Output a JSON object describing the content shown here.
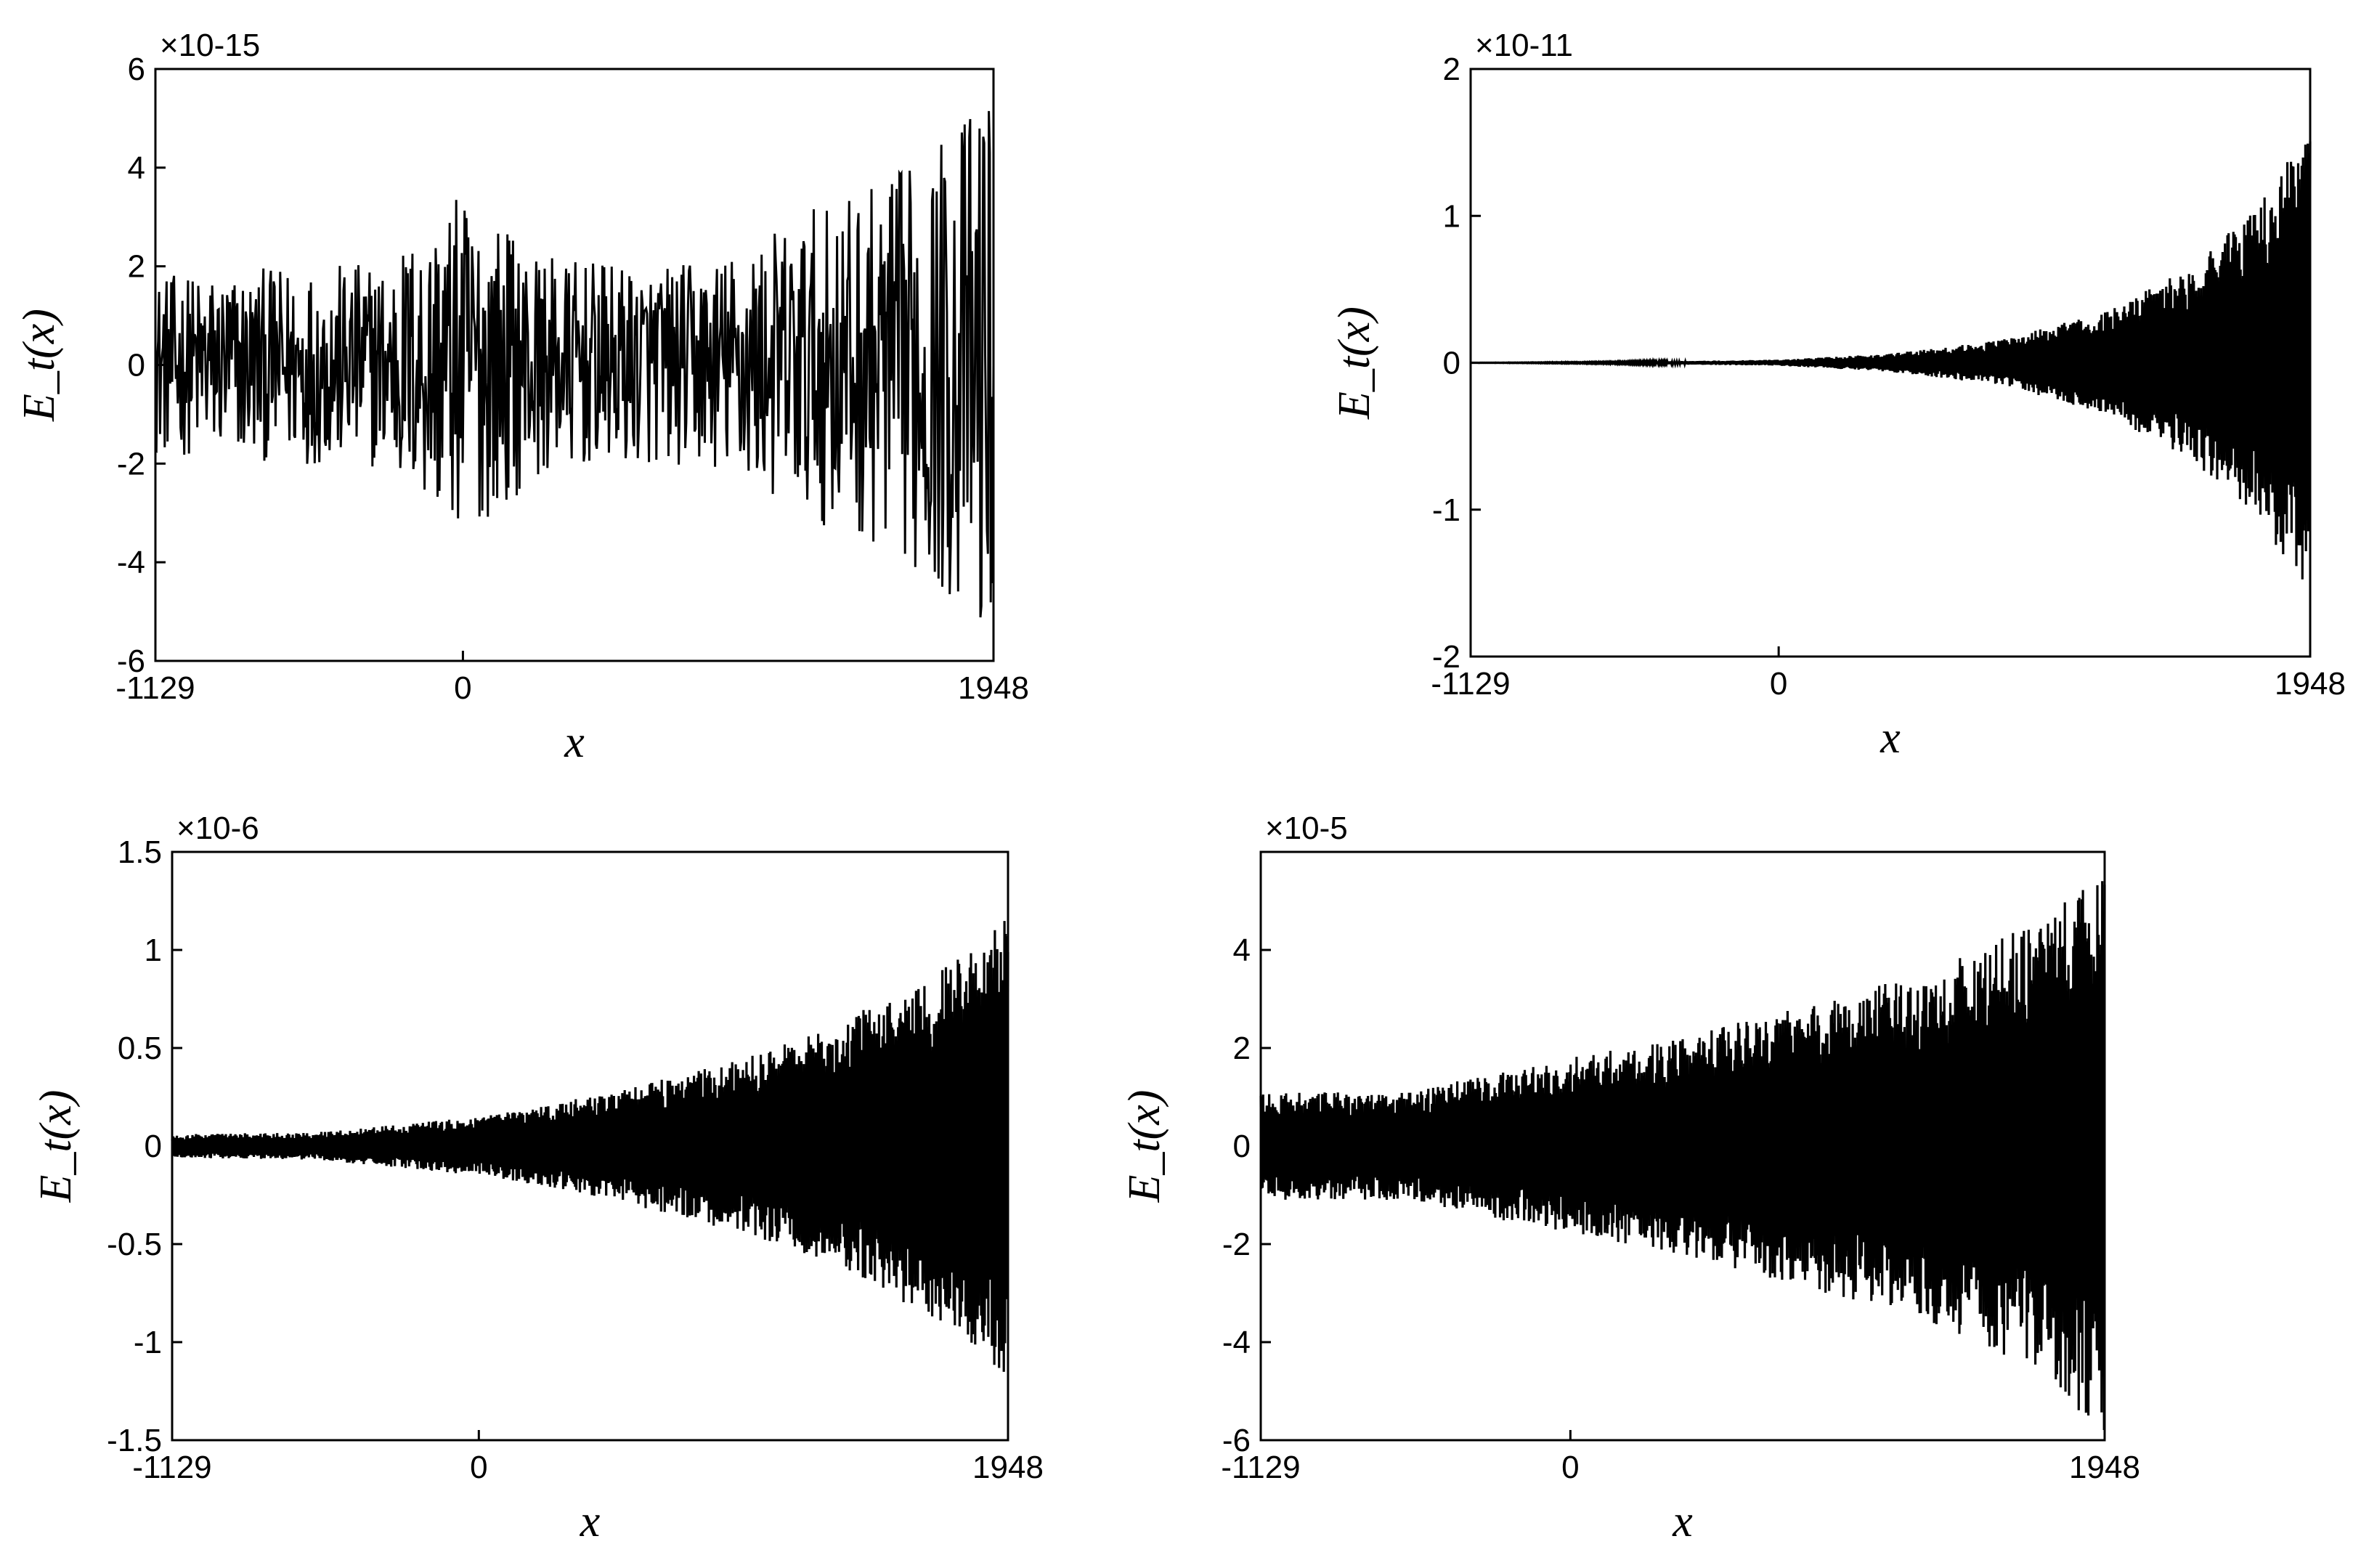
{
  "chart_data": [
    {
      "type": "line",
      "title": "",
      "xlabel": "x",
      "ylabel": "E_t(x)",
      "xlim": [
        -1129,
        1948
      ],
      "ylim": [
        -6,
        6
      ],
      "xticks": [
        -1129,
        0,
        1948
      ],
      "yticks": [
        -6,
        -4,
        -2,
        0,
        2,
        4,
        6
      ],
      "ytick_labels": [
        "-6",
        "-4",
        "-2",
        "0",
        "2",
        "4",
        "6"
      ],
      "y_exponent": "×10-15",
      "series": [
        {
          "x": [
            -1129,
            -900,
            -600,
            -300,
            0,
            300,
            600,
            900,
            1100,
            1300,
            1500,
            1700,
            1850,
            1948
          ],
          "envelope": [
            1.8,
            1.9,
            2.0,
            2.1,
            3.5,
            2.2,
            2.0,
            2.1,
            2.6,
            3.2,
            3.6,
            4.3,
            5.2,
            5.8
          ]
        }
      ]
    },
    {
      "type": "line",
      "title": "",
      "xlabel": "x",
      "ylabel": "E_t(x)",
      "xlim": [
        -1129,
        1948
      ],
      "ylim": [
        -2,
        2
      ],
      "xticks": [
        -1129,
        0,
        1948
      ],
      "yticks": [
        -2,
        -1,
        0,
        1,
        2
      ],
      "ytick_labels": [
        "-2",
        "-1",
        "0",
        "1",
        "2"
      ],
      "y_exponent": "×10-11",
      "series": [
        {
          "x": [
            -1129,
            -600,
            0,
            400,
            800,
            1200,
            1500,
            1750,
            1948
          ],
          "envelope": [
            0.0,
            0.005,
            0.02,
            0.06,
            0.15,
            0.35,
            0.65,
            1.05,
            1.6
          ]
        }
      ]
    },
    {
      "type": "line",
      "title": "",
      "xlabel": "x",
      "ylabel": "E_t(x)",
      "xlim": [
        -1129,
        1948
      ],
      "ylim": [
        -1.5,
        1.5
      ],
      "xticks": [
        -1129,
        0,
        1948
      ],
      "yticks": [
        -1.5,
        -1,
        -0.5,
        0,
        0.5,
        1,
        1.5
      ],
      "ytick_labels": [
        "-1.5",
        "-1",
        "-0.5",
        "0",
        "0.5",
        "1",
        "1.5"
      ],
      "y_exponent": "×10-6",
      "series": [
        {
          "x": [
            -1129,
            -600,
            0,
            400,
            800,
            1200,
            1500,
            1750,
            1948
          ],
          "envelope": [
            0.06,
            0.07,
            0.15,
            0.25,
            0.38,
            0.55,
            0.75,
            0.95,
            1.2
          ]
        }
      ]
    },
    {
      "type": "line",
      "title": "",
      "xlabel": "x",
      "ylabel": "E_t(x)",
      "xlim": [
        -1129,
        1948
      ],
      "ylim": [
        -6,
        6
      ],
      "xticks": [
        -1129,
        0,
        1948
      ],
      "yticks": [
        -6,
        -4,
        -2,
        0,
        2,
        4
      ],
      "ytick_labels": [
        "-6",
        "-4",
        "-2",
        "0",
        "2",
        "4"
      ],
      "y_exponent": "×10-5",
      "series": [
        {
          "x": [
            -1129,
            -600,
            0,
            400,
            800,
            1200,
            1500,
            1750,
            1948
          ],
          "envelope": [
            1.1,
            1.1,
            1.8,
            2.2,
            2.8,
            3.4,
            4.0,
            4.8,
            6.0
          ]
        }
      ]
    }
  ]
}
